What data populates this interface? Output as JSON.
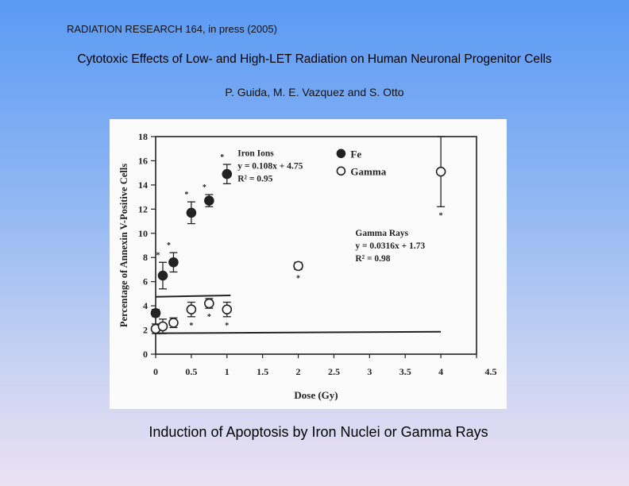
{
  "header": {
    "journal": "RADIATION RESEARCH 164, in press (2005)",
    "title": "Cytotoxic Effects of Low- and High-LET Radiation on Human Neuronal Progenitor Cells",
    "authors": "P. Guida, M. E. Vazquez and S. Otto"
  },
  "caption": "Induction of Apoptosis by Iron Nuclei or Gamma Rays",
  "chart_data": {
    "type": "scatter",
    "xlabel": "Dose (Gy)",
    "ylabel": "Percentage of Annexin V-Positive Cells",
    "xlim": [
      0,
      4.5
    ],
    "ylim": [
      0,
      18
    ],
    "x_ticks": [
      "0",
      "0.5",
      "1",
      "1.5",
      "2",
      "2.5",
      "3",
      "3.5",
      "4",
      "4.5"
    ],
    "y_ticks": [
      "0",
      "2",
      "4",
      "6",
      "8",
      "10",
      "12",
      "14",
      "16",
      "18"
    ],
    "legend": {
      "placement": "top-right",
      "entries": [
        "Fe",
        "Gamma"
      ]
    },
    "series": [
      {
        "name": "Fe",
        "marker": "filled-circle",
        "color": "#222222",
        "points": [
          {
            "x": 0,
            "y": 3.4,
            "err": 0.3,
            "sig": false
          },
          {
            "x": 0.1,
            "y": 6.5,
            "err": 1.1,
            "sig": true
          },
          {
            "x": 0.25,
            "y": 7.6,
            "err": 0.8,
            "sig": true
          },
          {
            "x": 0.5,
            "y": 11.7,
            "err": 0.9,
            "sig": true
          },
          {
            "x": 0.75,
            "y": 12.7,
            "err": 0.5,
            "sig": true
          },
          {
            "x": 1.0,
            "y": 14.9,
            "err": 0.8,
            "sig": true
          }
        ],
        "fit": {
          "slope": 0.108,
          "intercept": 4.75,
          "x_range": [
            0,
            1.05
          ]
        },
        "annotation": [
          "Iron Ions",
          "y = 0.108x + 4.75",
          "R² = 0.95"
        ]
      },
      {
        "name": "Gamma",
        "marker": "open-circle",
        "color": "#222222",
        "points": [
          {
            "x": 0,
            "y": 2.1,
            "err": 0.4,
            "sig": false
          },
          {
            "x": 0.1,
            "y": 2.3,
            "err": 0.6,
            "sig": false
          },
          {
            "x": 0.25,
            "y": 2.6,
            "err": 0.4,
            "sig": false
          },
          {
            "x": 0.5,
            "y": 3.7,
            "err": 0.6,
            "sig": true
          },
          {
            "x": 0.75,
            "y": 4.2,
            "err": 0.4,
            "sig": true
          },
          {
            "x": 1.0,
            "y": 3.7,
            "err": 0.6,
            "sig": true
          },
          {
            "x": 2.0,
            "y": 7.3,
            "err": 0.3,
            "sig": true
          },
          {
            "x": 4.0,
            "y": 15.1,
            "err": 2.9,
            "sig": true
          }
        ],
        "fit": {
          "slope": 0.0316,
          "intercept": 1.73,
          "x_range": [
            0,
            4.0
          ]
        },
        "annotation": [
          "Gamma Rays",
          "y = 0.0316x + 1.73",
          "R² = 0.98"
        ]
      }
    ],
    "significance_marker": "*"
  }
}
